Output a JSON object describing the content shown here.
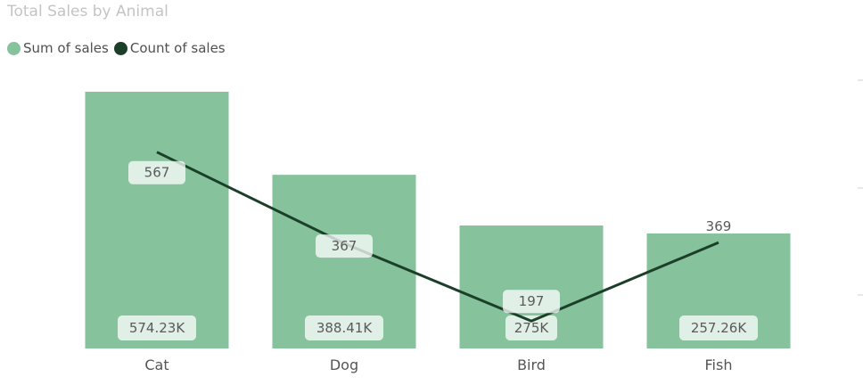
{
  "chart_data": {
    "type": "bar",
    "title": "Total Sales by Animal",
    "categories": [
      "Cat",
      "Dog",
      "Bird",
      "Fish"
    ],
    "series": [
      {
        "name": "Sum of sales",
        "type": "bar",
        "values": [
          574230,
          388410,
          275000,
          257260
        ],
        "labels": [
          "574.23K",
          "388.41K",
          "275K",
          "257.26K"
        ],
        "color": "#86c29b"
      },
      {
        "name": "Count of sales",
        "type": "line",
        "values": [
          567,
          367,
          197,
          369
        ],
        "labels": [
          "567",
          "367",
          "197",
          "369"
        ],
        "color": "#1c3f2a"
      }
    ],
    "xlabel": "",
    "ylabel": "",
    "y1lim": [
      0,
      600000
    ],
    "y2lim": [
      135,
      705
    ],
    "grid": false,
    "legend": "top-left"
  }
}
